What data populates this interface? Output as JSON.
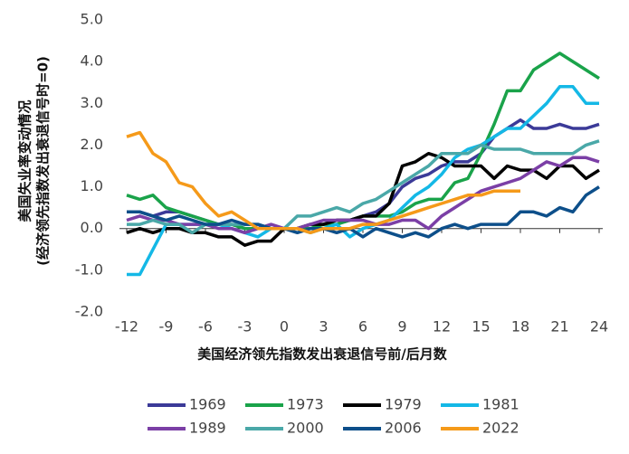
{
  "chart_data": {
    "type": "line",
    "y_label": [
      "美国失业率变动情况",
      "(经济领先指数发出衰退信号时=0)"
    ],
    "x_label": "美国经济领先指数发出衰退信号前/后月数",
    "x": [
      -12,
      -11,
      -10,
      -9,
      -8,
      -7,
      -6,
      -5,
      -4,
      -3,
      -2,
      -1,
      0,
      1,
      2,
      3,
      4,
      5,
      6,
      7,
      8,
      9,
      10,
      11,
      12,
      13,
      14,
      15,
      16,
      17,
      18,
      19,
      20,
      21,
      22,
      23,
      24
    ],
    "xlim": [
      -12,
      24
    ],
    "xticks": [
      -12,
      -9,
      -6,
      -3,
      0,
      3,
      6,
      9,
      12,
      15,
      18,
      21,
      24
    ],
    "ylim": [
      -2,
      5
    ],
    "yticks": [
      {
        "value": -2,
        "label": "-2.0"
      },
      {
        "value": -1,
        "label": "-1.0"
      },
      {
        "value": 0,
        "label": "0.0"
      },
      {
        "value": 1,
        "label": "1.0"
      },
      {
        "value": 2,
        "label": "2.0"
      },
      {
        "value": 3,
        "label": "3.0"
      },
      {
        "value": 4,
        "label": "4.0"
      },
      {
        "value": 5,
        "label": "5.0"
      }
    ],
    "grid": false,
    "legend": "bottom",
    "series": [
      {
        "name": "1969",
        "color": "#3b3a98",
        "values": [
          0.4,
          0.4,
          0.3,
          0.4,
          0.4,
          0.3,
          0.2,
          0.1,
          0.1,
          0.0,
          0.0,
          0.0,
          0.0,
          0.0,
          0.1,
          0.1,
          0.2,
          0.2,
          0.3,
          0.4,
          0.6,
          1.0,
          1.2,
          1.3,
          1.5,
          1.6,
          1.6,
          1.8,
          2.2,
          2.4,
          2.6,
          2.4,
          2.4,
          2.5,
          2.4,
          2.4,
          2.5
        ]
      },
      {
        "name": "1973",
        "color": "#1aa34a",
        "values": [
          0.8,
          0.7,
          0.8,
          0.5,
          0.4,
          0.3,
          0.2,
          0.1,
          0.1,
          0.0,
          0.0,
          0.0,
          0.0,
          0.0,
          0.0,
          0.1,
          0.1,
          0.2,
          0.3,
          0.3,
          0.3,
          0.4,
          0.6,
          0.7,
          0.7,
          1.1,
          1.2,
          1.8,
          2.5,
          3.3,
          3.3,
          3.8,
          4.0,
          4.2,
          4.0,
          3.8,
          3.6
        ]
      },
      {
        "name": "1979",
        "color": "#000000",
        "values": [
          -0.1,
          0.0,
          -0.1,
          0.0,
          0.0,
          -0.1,
          -0.1,
          -0.2,
          -0.2,
          -0.4,
          -0.3,
          -0.3,
          0.0,
          0.0,
          0.1,
          0.1,
          0.2,
          0.2,
          0.3,
          0.3,
          0.6,
          1.5,
          1.6,
          1.8,
          1.7,
          1.5,
          1.5,
          1.5,
          1.2,
          1.5,
          1.4,
          1.4,
          1.2,
          1.5,
          1.5,
          1.2,
          1.4
        ]
      },
      {
        "name": "1981",
        "color": "#14b8e6",
        "values": [
          -1.1,
          -1.1,
          -0.5,
          0.1,
          0.1,
          0.1,
          0.1,
          0.1,
          0.0,
          -0.1,
          -0.2,
          0.0,
          0.0,
          0.0,
          -0.1,
          0.0,
          0.1,
          -0.2,
          0.0,
          0.1,
          0.2,
          0.5,
          0.8,
          1.0,
          1.3,
          1.7,
          1.9,
          2.0,
          2.2,
          2.4,
          2.4,
          2.7,
          3.0,
          3.4,
          3.4,
          3.0,
          3.0
        ]
      },
      {
        "name": "1989",
        "color": "#7b3fa6",
        "values": [
          0.2,
          0.3,
          0.2,
          0.2,
          0.1,
          0.1,
          0.1,
          0.0,
          0.0,
          -0.1,
          0.0,
          0.1,
          0.0,
          0.0,
          0.1,
          0.2,
          0.2,
          0.2,
          0.2,
          0.1,
          0.1,
          0.2,
          0.2,
          0.0,
          0.3,
          0.5,
          0.7,
          0.9,
          1.0,
          1.1,
          1.2,
          1.4,
          1.6,
          1.5,
          1.7,
          1.7,
          1.6
        ]
      },
      {
        "name": "2000",
        "color": "#4aa8a8",
        "values": [
          0.1,
          0.1,
          0.2,
          0.1,
          0.1,
          -0.1,
          0.1,
          0.1,
          0.1,
          0.1,
          0.1,
          0.0,
          0.0,
          0.3,
          0.3,
          0.4,
          0.5,
          0.4,
          0.6,
          0.7,
          0.9,
          1.1,
          1.3,
          1.5,
          1.8,
          1.8,
          1.8,
          2.0,
          1.9,
          1.9,
          1.9,
          1.8,
          1.8,
          1.8,
          1.8,
          2.0,
          2.1
        ]
      },
      {
        "name": "2006",
        "color": "#0d4f8a",
        "values": [
          0.4,
          0.4,
          0.3,
          0.2,
          0.3,
          0.2,
          0.1,
          0.1,
          0.2,
          0.1,
          0.1,
          0.0,
          0.0,
          -0.1,
          0.0,
          0.0,
          -0.1,
          0.0,
          -0.2,
          0.0,
          -0.1,
          -0.2,
          -0.1,
          -0.2,
          0.0,
          0.1,
          0.0,
          0.1,
          0.1,
          0.1,
          0.4,
          0.4,
          0.3,
          0.5,
          0.4,
          0.8,
          1.0
        ]
      },
      {
        "name": "2022",
        "color": "#f59a1a",
        "values": [
          2.2,
          2.3,
          1.8,
          1.6,
          1.1,
          1.0,
          0.6,
          0.3,
          0.4,
          0.2,
          0.0,
          0.0,
          0.0,
          0.0,
          -0.1,
          0.0,
          0.0,
          0.0,
          0.1,
          0.1,
          0.2,
          0.3,
          0.4,
          0.5,
          0.6,
          0.7,
          0.8,
          0.8,
          0.9,
          0.9,
          0.9,
          null,
          null,
          null,
          null,
          null,
          null
        ]
      }
    ]
  }
}
